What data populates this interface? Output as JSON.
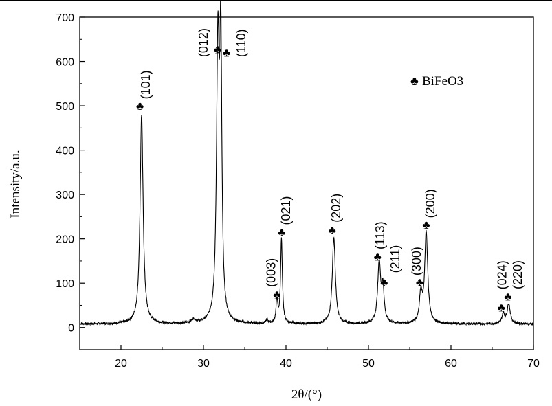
{
  "chart_data": {
    "type": "line",
    "title": "",
    "xlabel": "2θ/(°)",
    "ylabel": "Intensity/a.u.",
    "xlim": [
      15,
      70
    ],
    "ylim": [
      -50,
      700
    ],
    "xticks": [
      20,
      30,
      40,
      50,
      60,
      70
    ],
    "yticks": [
      0,
      100,
      200,
      300,
      400,
      500,
      600,
      700
    ],
    "grid": false,
    "line_color": "#000000",
    "baseline_intensity": 8,
    "peaks": [
      {
        "x": 22.5,
        "intensity": 472,
        "width": 0.22
      },
      {
        "x": 28.8,
        "intensity": 8,
        "width": 0.3
      },
      {
        "x": 31.75,
        "intensity": 612,
        "width": 0.2
      },
      {
        "x": 32.1,
        "intensity": 585,
        "width": 0.15
      },
      {
        "x": 37.7,
        "intensity": 8,
        "width": 0.15
      },
      {
        "x": 38.9,
        "intensity": 52,
        "width": 0.12
      },
      {
        "x": 39.45,
        "intensity": 190,
        "width": 0.13
      },
      {
        "x": 45.8,
        "intensity": 195,
        "width": 0.22
      },
      {
        "x": 51.3,
        "intensity": 135,
        "width": 0.22
      },
      {
        "x": 51.75,
        "intensity": 75,
        "width": 0.18
      },
      {
        "x": 56.35,
        "intensity": 65,
        "width": 0.2
      },
      {
        "x": 57.0,
        "intensity": 205,
        "width": 0.22
      },
      {
        "x": 66.35,
        "intensity": 22,
        "width": 0.2
      },
      {
        "x": 67.0,
        "intensity": 45,
        "width": 0.22
      }
    ],
    "annotations": [
      {
        "label": "(101)",
        "club": [
          22.3,
          500
        ],
        "text": [
          23.0,
          515
        ]
      },
      {
        "label": "(012)",
        "club": [
          31.7,
          628
        ],
        "text": [
          30.0,
          610
        ]
      },
      {
        "label": "(110)",
        "club": [
          32.8,
          620
        ],
        "text": [
          34.6,
          610
        ]
      },
      {
        "label": "(003)",
        "club": [
          38.9,
          75
        ],
        "text": [
          38.2,
          82
        ]
      },
      {
        "label": "(021)",
        "club": [
          39.5,
          215
        ],
        "text": [
          40.0,
          222
        ]
      },
      {
        "label": "(202)",
        "club": [
          45.6,
          220
        ],
        "text": [
          46.1,
          237
        ]
      },
      {
        "label": "(113)",
        "club": [
          51.1,
          160
        ],
        "text": [
          51.4,
          170
        ]
      },
      {
        "label": "(211)",
        "club": [
          51.9,
          102
        ],
        "text": [
          52.85,
          123
        ]
      },
      {
        "label": "(300)",
        "club": [
          56.2,
          103
        ],
        "text": [
          55.85,
          114
        ]
      },
      {
        "label": "(200)",
        "club": [
          57.0,
          232
        ],
        "text": [
          57.5,
          247
        ]
      },
      {
        "label": "(024)",
        "club": [
          66.1,
          45
        ],
        "text": [
          66.2,
          58
        ]
      },
      {
        "label": "(220)",
        "club": [
          66.9,
          70
        ],
        "text": [
          67.4,
          74
        ]
      }
    ],
    "club_symbol": "♣",
    "legend": {
      "symbol": "♣",
      "label": "BiFeO3",
      "placement": "top-right"
    }
  }
}
